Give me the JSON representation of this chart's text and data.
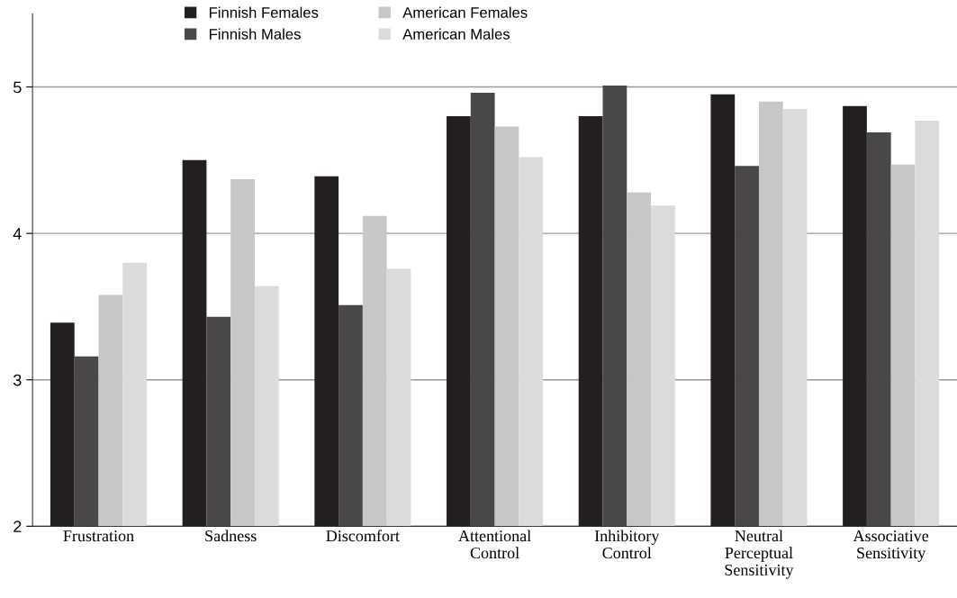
{
  "chart_data": {
    "type": "bar",
    "categories": [
      "Frustration",
      "Sadness",
      "Discomfort",
      "Attentional\nControl",
      "Inhibitory\nControl",
      "Neutral\nPerceptual\nSensitivity",
      "Associative\nSensitivity"
    ],
    "series": [
      {
        "name": "Finnish Females",
        "color": "#231f20",
        "values": [
          3.39,
          4.5,
          4.39,
          4.8,
          4.8,
          4.95,
          4.87
        ]
      },
      {
        "name": "Finnish Males",
        "color": "#4a4748",
        "values": [
          3.16,
          3.43,
          3.51,
          4.96,
          5.01,
          4.46,
          4.69
        ]
      },
      {
        "name": "American Females",
        "color": "#c6c7c9",
        "values": [
          3.58,
          4.37,
          4.12,
          4.73,
          4.28,
          4.9,
          4.47
        ]
      },
      {
        "name": "American Males",
        "color": "#dadbdc",
        "values": [
          3.8,
          3.64,
          3.76,
          4.52,
          4.19,
          4.85,
          4.77
        ]
      }
    ],
    "ylim": [
      2,
      5.5
    ],
    "yticks": [
      2,
      3,
      4,
      5
    ],
    "grid": "y",
    "legend": "top"
  }
}
